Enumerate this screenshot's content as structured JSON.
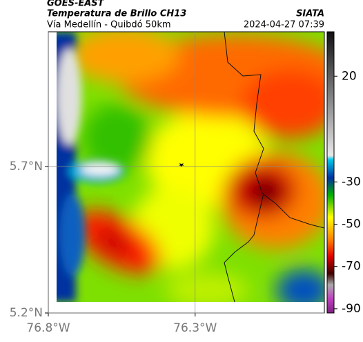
{
  "header": {
    "satellite": "GOES-EAST",
    "product": "Temperatura de Brillo CH13",
    "source": "SIATA",
    "route": "Vía Medellín - Quibdó 50km",
    "datetime": "2024-04-27 07:39"
  },
  "map": {
    "xlim": [
      -76.8,
      -75.86
    ],
    "ylim": [
      5.2,
      6.16
    ],
    "xticks": [
      {
        "value": -76.8,
        "label": "76.8°W"
      },
      {
        "value": -76.3,
        "label": "76.3°W"
      }
    ],
    "yticks": [
      {
        "value": 5.7,
        "label": "5.7°N"
      },
      {
        "value": 5.2,
        "label": "5.2°N"
      }
    ],
    "grid": true
  },
  "colorbar": {
    "lim": [
      -92,
      41
    ],
    "ticks": [
      20,
      -30,
      -50,
      -70,
      -90
    ]
  }
}
